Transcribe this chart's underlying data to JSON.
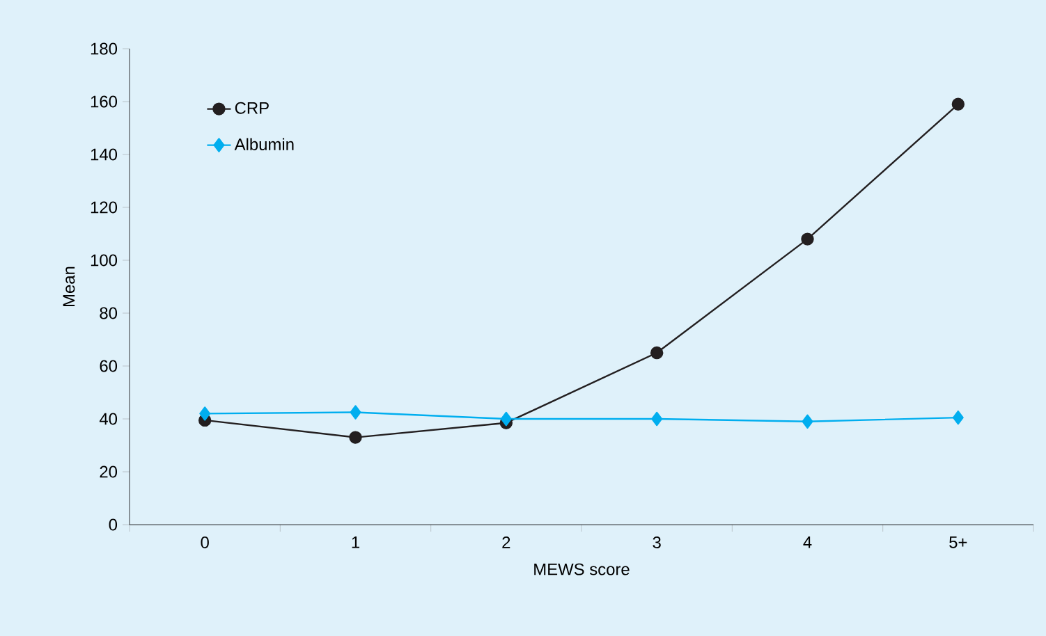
{
  "chart_data": {
    "type": "line",
    "xlabel": "MEWS score",
    "ylabel": "Mean",
    "categories": [
      "0",
      "1",
      "2",
      "3",
      "4",
      "5+"
    ],
    "series": [
      {
        "name": "CRP",
        "color": "#231f20",
        "marker": "circle",
        "values": [
          39.5,
          33,
          38.5,
          65,
          108,
          159
        ]
      },
      {
        "name": "Albumin",
        "color": "#00aeef",
        "marker": "diamond",
        "values": [
          42,
          42.5,
          40,
          40,
          39,
          40.5
        ]
      }
    ],
    "ylim": [
      0,
      180
    ],
    "yticks": [
      0,
      20,
      40,
      60,
      80,
      100,
      120,
      140,
      160,
      180
    ],
    "grid": false,
    "legend": "top left",
    "line_style": "solid"
  }
}
